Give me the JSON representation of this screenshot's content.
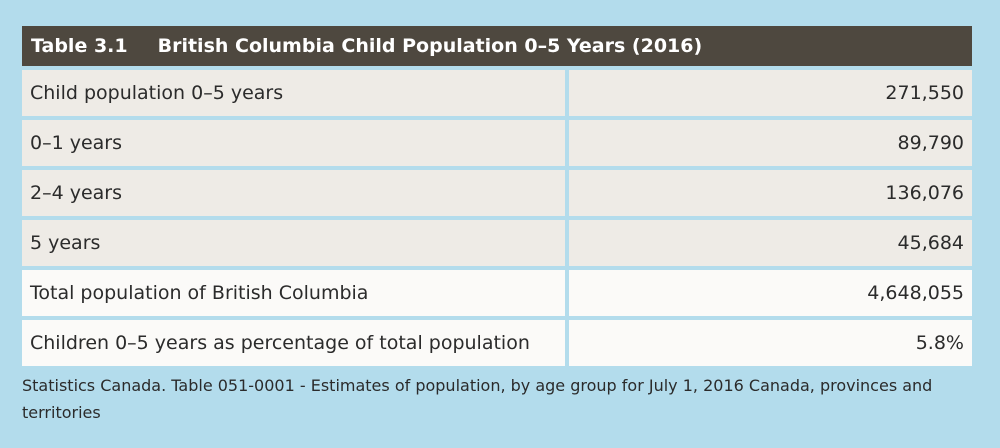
{
  "table": {
    "number": "Table 3.1",
    "title": "British Columbia Child Population 0–5 Years (2016)",
    "rows": [
      {
        "label": "Child population 0–5 years",
        "value": "271,550"
      },
      {
        "label": "0–1 years",
        "value": "89,790"
      },
      {
        "label": "2–4 years",
        "value": "136,076"
      },
      {
        "label": "5 years",
        "value": "45,684"
      },
      {
        "label": "Total population of British Columbia",
        "value": "4,648,055"
      },
      {
        "label": "Children 0–5 years as percentage of total population",
        "value": "5.8%"
      }
    ]
  },
  "source": "Statistics Canada. Table 051-0001 - Estimates of population, by age group for July 1, 2016 Canada, provinces and territories"
}
